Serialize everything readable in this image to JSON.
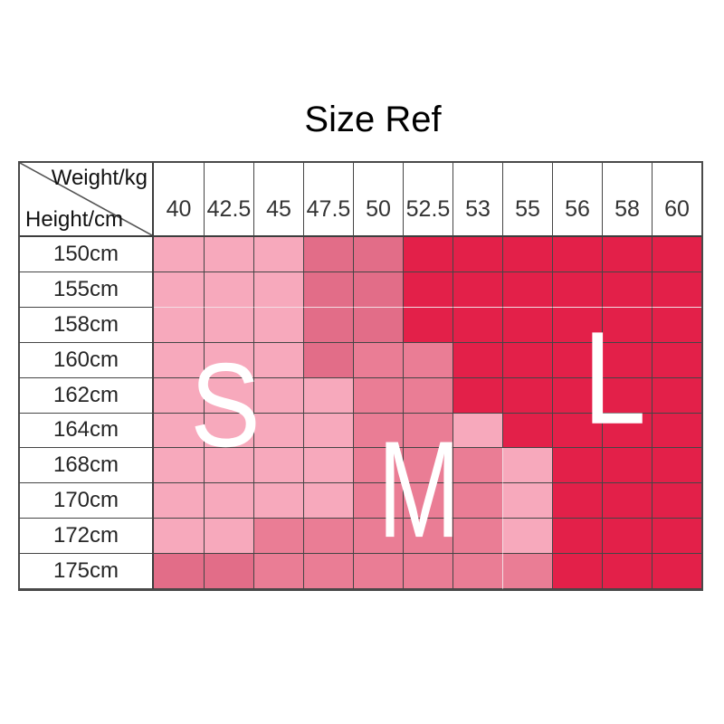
{
  "chart_data": {
    "type": "heatmap",
    "title": "Size Ref",
    "x_label": "Weight/kg",
    "y_label": "Height/cm",
    "x_categories": [
      "40",
      "42.5",
      "45",
      "47.5",
      "50",
      "52.5",
      "53",
      "55",
      "56",
      "58",
      "60"
    ],
    "y_categories": [
      "150cm",
      "155cm",
      "158cm",
      "160cm",
      "162cm",
      "164cm",
      "168cm",
      "170cm",
      "172cm",
      "175cm"
    ],
    "palette": {
      "P1": "#F7A9BC",
      "P2": "#EA7D95",
      "P3": "#E26D88",
      "R": "#E32049"
    },
    "cell_shades": [
      [
        "P1",
        "P1",
        "P1",
        "P3",
        "P3",
        "R",
        "R",
        "R",
        "R",
        "R",
        "R"
      ],
      [
        "P1",
        "P1",
        "P1",
        "P3",
        "P3",
        "R",
        "R",
        "R",
        "R",
        "R",
        "R"
      ],
      [
        "P1",
        "P1",
        "P1",
        "P3",
        "P3",
        "R",
        "R",
        "R",
        "R",
        "R",
        "R"
      ],
      [
        "P1",
        "P1",
        "P1",
        "P3",
        "P2",
        "P2",
        "R",
        "R",
        "R",
        "R",
        "R"
      ],
      [
        "P1",
        "P1",
        "P1",
        "P1",
        "P2",
        "P2",
        "R",
        "R",
        "R",
        "R",
        "R"
      ],
      [
        "P1",
        "P1",
        "P1",
        "P1",
        "P2",
        "P2",
        "P1",
        "R",
        "R",
        "R",
        "R"
      ],
      [
        "P1",
        "P1",
        "P1",
        "P1",
        "P2",
        "P2",
        "P2",
        "P1",
        "R",
        "R",
        "R"
      ],
      [
        "P1",
        "P1",
        "P1",
        "P1",
        "P2",
        "P2",
        "P2",
        "P1",
        "R",
        "R",
        "R"
      ],
      [
        "P1",
        "P1",
        "P2",
        "P2",
        "P2",
        "P2",
        "P2",
        "P1",
        "R",
        "R",
        "R"
      ],
      [
        "P3",
        "P3",
        "P2",
        "P2",
        "P2",
        "P2",
        "P2",
        "P2",
        "R",
        "R",
        "R"
      ]
    ],
    "letters": [
      {
        "char": "S",
        "zone": "light-pink-region",
        "color": "#FFFFFF"
      },
      {
        "char": "M",
        "zone": "medium-pink-region",
        "color": "#FFFFFF"
      },
      {
        "char": "L",
        "zone": "red-region",
        "color": "#FFFFFF"
      }
    ],
    "grid": true,
    "legend_position": "none"
  }
}
